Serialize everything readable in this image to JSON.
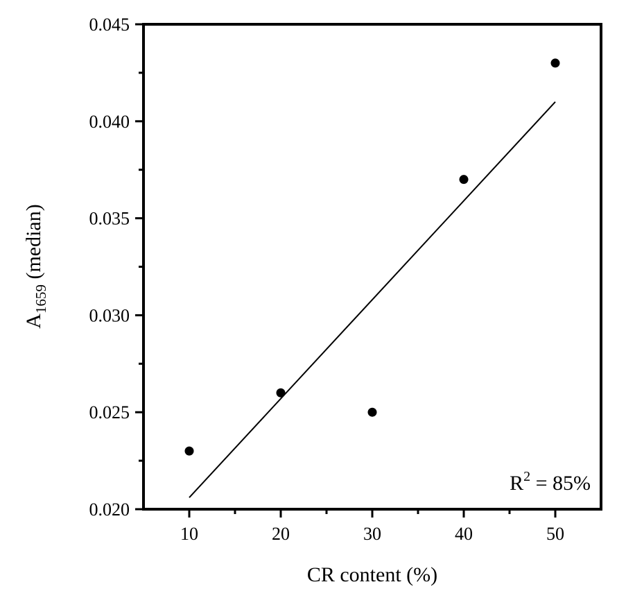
{
  "chart_data": {
    "type": "scatter",
    "title": "",
    "xlabel": "CR content (%)",
    "ylabel": {
      "main": "A",
      "subscript": "1659",
      "suffix": " (median)"
    },
    "xlim": [
      5,
      55
    ],
    "ylim": [
      0.02,
      0.045
    ],
    "xticks": [
      10,
      20,
      30,
      40,
      50
    ],
    "xtick_labels": [
      "10",
      "20",
      "30",
      "40",
      "50"
    ],
    "yticks": [
      0.02,
      0.025,
      0.03,
      0.035,
      0.04,
      0.045
    ],
    "ytick_labels": [
      "0.020",
      "0.025",
      "0.030",
      "0.035",
      "0.040",
      "0.045"
    ],
    "grid": false,
    "series": [
      {
        "x": [
          10,
          20,
          30,
          40,
          50
        ],
        "y": [
          0.023,
          0.026,
          0.025,
          0.037,
          0.043
        ],
        "color": "#000000"
      }
    ],
    "fit_line": {
      "x": [
        10,
        50
      ],
      "y": [
        0.0206,
        0.041
      ],
      "color": "#000000"
    },
    "annotation": {
      "base": "R",
      "sup": "2",
      "rest": " = 85%",
      "position": "bottom-right"
    }
  }
}
